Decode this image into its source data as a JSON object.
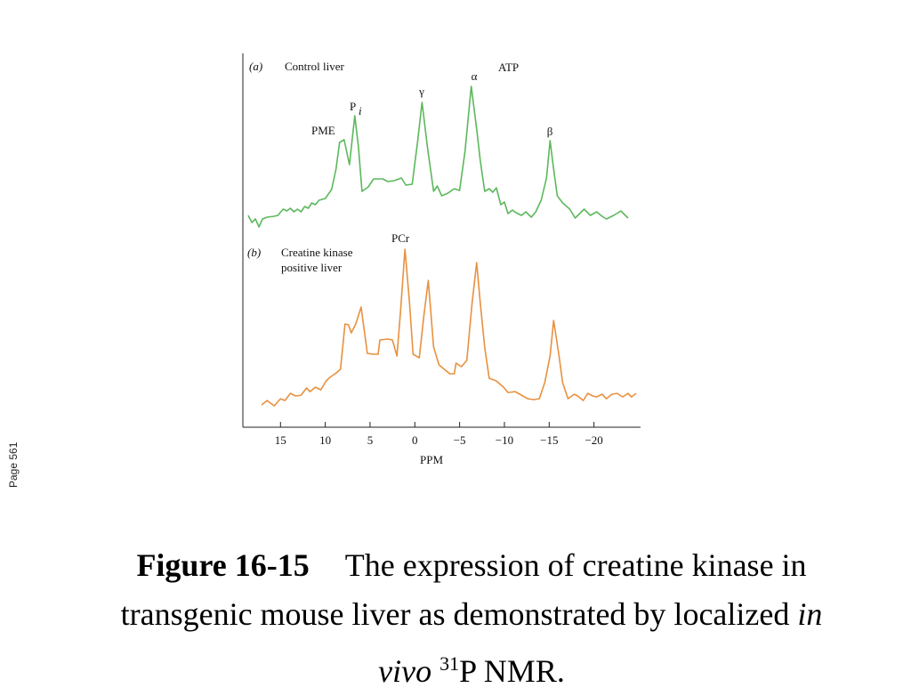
{
  "chart_data": [
    {
      "type": "line",
      "panel": "(a)",
      "title": "Control liver",
      "annotations": [
        "PME",
        "P",
        "i",
        "γ",
        "α",
        "ATP",
        "β"
      ],
      "xlim": [
        19.2,
        -25.2
      ],
      "ylim": [
        0,
        200
      ],
      "series": [
        {
          "color": "#5cb85c",
          "x": [
            18.6,
            18.2,
            17.8,
            17.4,
            17.0,
            16.5,
            15.7,
            15.3,
            14.7,
            14.3,
            13.9,
            13.5,
            13.1,
            12.7,
            12.3,
            11.9,
            11.5,
            11.1,
            10.7,
            10.0,
            9.3,
            8.8,
            8.4,
            7.9,
            7.3,
            6.7,
            6.3,
            5.9,
            5.2,
            4.6,
            3.6,
            3.0,
            2.3,
            1.5,
            1.0,
            0.3,
            -0.3,
            -0.8,
            -1.4,
            -2.1,
            -2.5,
            -3.0,
            -3.7,
            -4.4,
            -5.0,
            -5.6,
            -6.3,
            -6.9,
            -7.3,
            -7.8,
            -8.3,
            -8.7,
            -9.1,
            -9.6,
            -10.0,
            -10.4,
            -10.9,
            -11.3,
            -11.9,
            -12.4,
            -13.0,
            -13.5,
            -14.1,
            -14.7,
            -15.1,
            -15.5,
            -15.9,
            -16.5,
            -17.3,
            -17.9,
            -18.6,
            -18.9,
            -19.6,
            -20.3,
            -20.9,
            -21.4,
            -22.2,
            -23.0,
            -23.8
          ],
          "values": [
            18,
            10,
            14,
            5,
            14,
            16,
            17,
            18,
            25,
            23,
            26,
            22,
            25,
            22,
            28,
            26,
            32,
            30,
            35,
            37,
            47,
            70,
            100,
            103,
            75,
            130,
            95,
            45,
            50,
            59,
            59,
            56,
            57,
            60,
            52,
            53,
            100,
            145,
            95,
            45,
            51,
            40,
            43,
            48,
            46,
            90,
            163,
            115,
            80,
            45,
            48,
            44,
            49,
            30,
            33,
            20,
            24,
            21,
            18,
            22,
            16,
            22,
            35,
            60,
            102,
            70,
            40,
            32,
            25,
            15,
            22,
            25,
            18,
            22,
            17,
            14,
            18,
            23,
            15
          ]
        }
      ]
    },
    {
      "type": "line",
      "panel": "(b)",
      "title": [
        "Creatine kinase",
        "positive liver"
      ],
      "annotations": [
        "PCr"
      ],
      "xlabel": "PPM",
      "xlim": [
        19.2,
        -25.2
      ],
      "ylim": [
        0,
        200
      ],
      "xticks": [
        15,
        10,
        5,
        0,
        {
          "value": -5,
          "label": "−5"
        },
        {
          "value": -10,
          "label": "−10"
        },
        {
          "value": -15,
          "label": "−15"
        },
        {
          "value": -20,
          "label": "−20"
        }
      ],
      "series": [
        {
          "color": "#e8913f",
          "x": [
            17.1,
            16.5,
            15.7,
            15.0,
            14.5,
            13.9,
            13.3,
            12.7,
            12.1,
            11.7,
            11.1,
            10.5,
            9.9,
            9.5,
            8.9,
            8.3,
            7.8,
            7.4,
            7.1,
            6.6,
            6.0,
            5.3,
            4.7,
            4.1,
            3.9,
            3.0,
            2.5,
            2.0,
            1.6,
            1.1,
            0.6,
            0.2,
            -0.5,
            -1.0,
            -1.5,
            -2.1,
            -2.7,
            -3.9,
            -4.4,
            -4.6,
            -5.2,
            -5.8,
            -6.4,
            -6.9,
            -7.3,
            -7.8,
            -8.3,
            -9.1,
            -9.9,
            -10.4,
            -11.2,
            -11.9,
            -12.6,
            -13.3,
            -13.9,
            -14.5,
            -15.1,
            -15.5,
            -16.1,
            -16.5,
            -17.1,
            -17.8,
            -18.2,
            -18.8,
            -19.3,
            -19.9,
            -20.3,
            -20.9,
            -21.4,
            -22.0,
            -22.6,
            -23.2,
            -23.8,
            -24.2,
            -24.7
          ],
          "values": [
            15,
            20,
            14,
            22,
            20,
            28,
            25,
            26,
            34,
            30,
            35,
            32,
            42,
            46,
            50,
            55,
            106,
            105,
            96,
            106,
            125,
            73,
            72,
            72,
            88,
            89,
            88,
            70,
            120,
            190,
            130,
            72,
            68,
            115,
            155,
            80,
            60,
            50,
            50,
            62,
            58,
            65,
            130,
            175,
            130,
            80,
            45,
            42,
            35,
            29,
            30,
            26,
            22,
            21,
            22,
            40,
            70,
            110,
            70,
            40,
            22,
            27,
            25,
            20,
            28,
            25,
            24,
            27,
            22,
            27,
            28,
            24,
            28,
            24,
            28
          ]
        }
      ]
    }
  ],
  "side_note": "Page 561",
  "caption": {
    "label": "Figure 16-15",
    "text": "The expression of creatine kinase in transgenic mouse liver as demonstrated by localized",
    "italic": "in vivo",
    "sup": "31",
    "end": "P NMR."
  }
}
